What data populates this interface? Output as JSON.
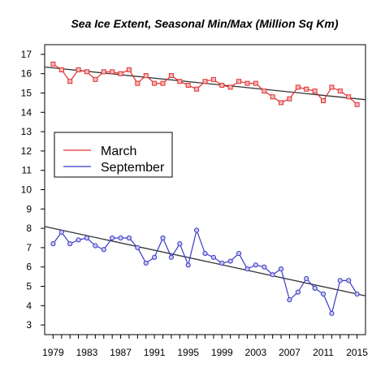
{
  "chart_data": {
    "type": "line",
    "title": "Sea Ice Extent, Seasonal Min/Max (Million Sq Km)",
    "xlabel": "",
    "ylabel": "",
    "xlim": [
      1978,
      2016
    ],
    "ylim": [
      2.5,
      17.5
    ],
    "x_ticks": [
      1979,
      1983,
      1987,
      1991,
      1995,
      1999,
      2003,
      2007,
      2011,
      2015
    ],
    "y_ticks": [
      3,
      4,
      5,
      6,
      7,
      8,
      9,
      10,
      11,
      12,
      13,
      14,
      15,
      16,
      17
    ],
    "legend_position": "left-middle",
    "x": [
      1979,
      1980,
      1981,
      1982,
      1983,
      1984,
      1985,
      1986,
      1987,
      1988,
      1989,
      1990,
      1991,
      1992,
      1993,
      1994,
      1995,
      1996,
      1997,
      1998,
      1999,
      2000,
      2001,
      2002,
      2003,
      2004,
      2005,
      2006,
      2007,
      2008,
      2009,
      2010,
      2011,
      2012,
      2013,
      2014,
      2015
    ],
    "series": [
      {
        "name": "March",
        "color": "#e03030",
        "marker": "square",
        "values": [
          16.5,
          16.2,
          15.6,
          16.2,
          16.1,
          15.7,
          16.1,
          16.1,
          16.0,
          16.2,
          15.5,
          15.9,
          15.5,
          15.5,
          15.9,
          15.6,
          15.4,
          15.2,
          15.6,
          15.7,
          15.4,
          15.3,
          15.6,
          15.5,
          15.5,
          15.1,
          14.8,
          14.5,
          14.7,
          15.3,
          15.2,
          15.1,
          14.6,
          15.3,
          15.1,
          14.8,
          14.4
        ],
        "trend": [
          16.3,
          14.7
        ]
      },
      {
        "name": "September",
        "color": "#3a3ac8",
        "marker": "circle",
        "values": [
          7.2,
          7.8,
          7.2,
          7.4,
          7.5,
          7.1,
          6.9,
          7.5,
          7.5,
          7.5,
          7.0,
          6.2,
          6.5,
          7.5,
          6.5,
          7.2,
          6.1,
          7.9,
          6.7,
          6.5,
          6.2,
          6.3,
          6.7,
          5.9,
          6.1,
          6.0,
          5.6,
          5.9,
          4.3,
          4.7,
          5.4,
          4.9,
          4.6,
          3.6,
          5.3,
          5.3,
          4.6
        ],
        "trend": [
          8.0,
          4.6
        ]
      }
    ],
    "trend_color": "#333333"
  }
}
